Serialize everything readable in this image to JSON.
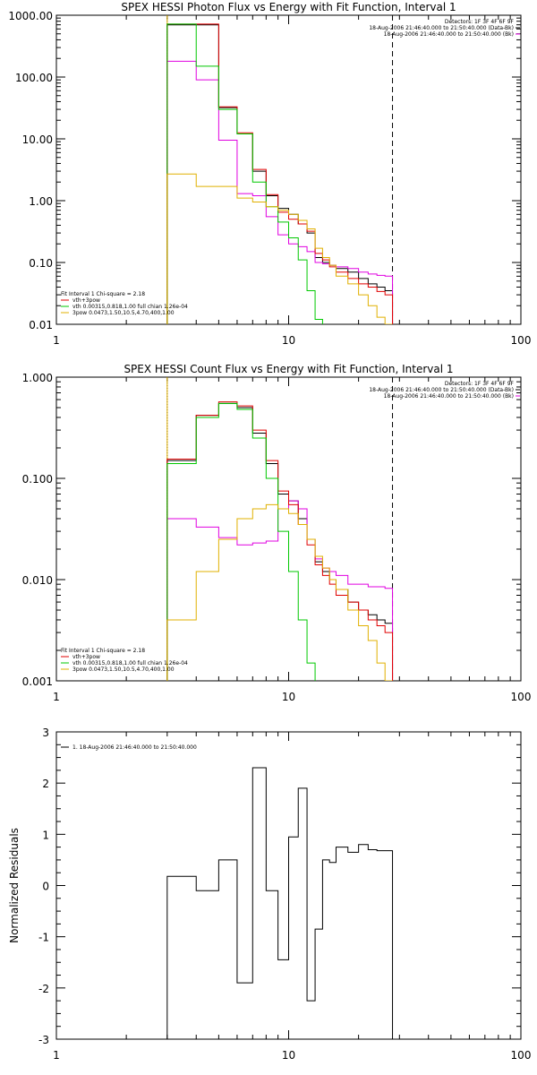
{
  "chart_data": [
    {
      "id": "photon",
      "type": "line",
      "title": "SPEX HESSI Photon Flux vs Energy with Fit Function, Interval 1",
      "ylabel": "",
      "xscale": "log",
      "yscale": "log",
      "xlim": [
        1,
        100
      ],
      "ylim": [
        0.01,
        1000
      ],
      "x_ticks": [
        "1",
        "10",
        "100"
      ],
      "y_ticks": [
        "0.01",
        "0.10",
        "1.00",
        "10.00",
        "100.00",
        "1000.00"
      ],
      "info_lines": [
        "Detectors: 1F 3F 4F 6F 9F",
        "18-Aug-2006 21:46:40.000 to 21:50:40.000 (Data-Bk)",
        "18-Aug-2006 21:46:40.000 to 21:50:40.000 (Bk)"
      ],
      "legend": [
        "Fit Interval 1   Chi-square = 2.18",
        "vth+3pow",
        "vth 0.00315,0.818,1.00   full chian 1.26e-04",
        "3pow 0.0473,1.50,10.5,4.70,400,1.00"
      ],
      "vlines": [
        {
          "x": 3.0,
          "style": "dotted",
          "color": "#000000"
        },
        {
          "x": 3.0,
          "style": "solid",
          "color": "#e0b000"
        },
        {
          "x": 28.0,
          "style": "dashed",
          "color": "#000000"
        }
      ],
      "energy_edges": [
        3,
        4,
        5,
        6,
        7,
        8,
        9,
        10,
        11,
        12,
        13,
        14,
        15,
        16,
        18,
        20,
        22,
        24,
        26,
        28
      ],
      "series": [
        {
          "name": "Data-Bk",
          "color": "#000000",
          "floor": 0.01,
          "end": "down",
          "values": [
            700,
            700,
            32,
            12,
            3,
            1.2,
            0.75,
            0.6,
            0.42,
            0.3,
            0.12,
            0.1,
            0.09,
            0.08,
            0.07,
            0.055,
            0.045,
            0.04,
            0.035
          ]
        },
        {
          "name": "Bk",
          "color": "#e000e0",
          "floor": 0.01,
          "end": "down",
          "values": [
            180,
            90,
            9.5,
            1.3,
            1.2,
            0.55,
            0.28,
            0.2,
            0.18,
            0.15,
            0.1,
            0.095,
            0.09,
            0.085,
            0.08,
            0.07,
            0.065,
            0.062,
            0.06
          ]
        },
        {
          "name": "vth+3pow",
          "color": "#e00000",
          "floor": 0.01,
          "end": "down",
          "values": [
            720,
            720,
            33,
            12.5,
            3.2,
            1.25,
            0.65,
            0.5,
            0.42,
            0.32,
            0.14,
            0.11,
            0.085,
            0.07,
            0.055,
            0.045,
            0.04,
            0.034,
            0.03
          ]
        },
        {
          "name": "vth 0.00315,0.818,1.00",
          "color": "#00c800",
          "floor": 0.01,
          "end": "down",
          "values": [
            720,
            150,
            30,
            12,
            2.0,
            0.8,
            0.45,
            0.25,
            0.11,
            0.035,
            0.012
          ]
        },
        {
          "name": "3pow 0.0473,1.50,10.5,4.70,400,1.00",
          "color": "#e0b000",
          "floor": 0.01,
          "end": "down",
          "values": [
            2.7,
            1.7,
            1.7,
            1.1,
            0.95,
            0.8,
            0.7,
            0.6,
            0.48,
            0.35,
            0.17,
            0.12,
            0.09,
            0.06,
            0.045,
            0.03,
            0.02,
            0.013,
            0.01
          ]
        }
      ]
    },
    {
      "id": "count",
      "type": "line",
      "title": "SPEX HESSI Count Flux vs Energy with Fit Function, Interval 1",
      "ylabel": "",
      "xscale": "log",
      "yscale": "log",
      "xlim": [
        1,
        100
      ],
      "ylim": [
        0.001,
        1.0
      ],
      "x_ticks": [
        "1",
        "10",
        "100"
      ],
      "y_ticks": [
        "0.001",
        "0.010",
        "0.100",
        "1.000"
      ],
      "info_lines": [
        "Detectors: 1F 3F 4F 6F 9F",
        "18-Aug-2006 21:46:40.000 to 21:50:40.000 (Data-Bk)",
        "18-Aug-2006 21:46:40.000 to 21:50:40.000 (Bk)"
      ],
      "legend": [
        "Fit Interval 1   Chi-square = 2.18",
        "vth+3pow",
        "vth 0.00315,0.818,1.00   full chian 1.26e-04",
        "3pow 0.0473,1.50,10.5,4.70,400,1.00"
      ],
      "vlines": [
        {
          "x": 3.0,
          "style": "dotted",
          "color": "#000000"
        },
        {
          "x": 3.0,
          "style": "solid",
          "color": "#e0b000"
        },
        {
          "x": 28.0,
          "style": "dashed",
          "color": "#000000"
        }
      ],
      "energy_edges": [
        3,
        4,
        5,
        6,
        7,
        8,
        9,
        10,
        11,
        12,
        13,
        14,
        15,
        16,
        18,
        20,
        22,
        24,
        26,
        28
      ],
      "series": [
        {
          "name": "Data-Bk",
          "color": "#000000",
          "floor": 0.001,
          "end": "down",
          "values": [
            0.15,
            0.42,
            0.55,
            0.5,
            0.28,
            0.14,
            0.07,
            0.06,
            0.04,
            0.025,
            0.015,
            0.012,
            0.01,
            0.008,
            0.006,
            0.005,
            0.0045,
            0.004,
            0.0037
          ]
        },
        {
          "name": "Bk",
          "color": "#e000e0",
          "floor": 0.001,
          "end": "down",
          "values": [
            0.04,
            0.033,
            0.026,
            0.022,
            0.023,
            0.024,
            0.05,
            0.06,
            0.05,
            0.025,
            0.016,
            0.013,
            0.012,
            0.011,
            0.009,
            0.009,
            0.0085,
            0.0085,
            0.0082
          ]
        },
        {
          "name": "vth+3pow",
          "color": "#e00000",
          "floor": 0.001,
          "end": "down",
          "values": [
            0.155,
            0.42,
            0.57,
            0.52,
            0.3,
            0.15,
            0.075,
            0.055,
            0.035,
            0.022,
            0.014,
            0.011,
            0.009,
            0.007,
            0.006,
            0.005,
            0.004,
            0.0035,
            0.003
          ]
        },
        {
          "name": "vth 0.00315,0.818,1.00",
          "color": "#00c800",
          "floor": 0.001,
          "end": "down",
          "values": [
            0.14,
            0.4,
            0.55,
            0.48,
            0.25,
            0.1,
            0.03,
            0.012,
            0.004,
            0.0015
          ]
        },
        {
          "name": "3pow 0.0473,1.50,10.5,4.70,400,1.00",
          "color": "#e0b000",
          "floor": 0.001,
          "end": "down",
          "values": [
            0.004,
            0.012,
            0.025,
            0.04,
            0.05,
            0.055,
            0.05,
            0.045,
            0.035,
            0.025,
            0.017,
            0.013,
            0.01,
            0.008,
            0.005,
            0.0035,
            0.0025,
            0.0015,
            0.001
          ]
        }
      ]
    },
    {
      "id": "residuals",
      "type": "line",
      "title": "",
      "ylabel": "Normalized Residuals",
      "xscale": "log",
      "yscale": "linear",
      "xlim": [
        1,
        100
      ],
      "ylim": [
        -3,
        3
      ],
      "x_ticks": [
        "1",
        "10",
        "100"
      ],
      "y_ticks": [
        "-3",
        "-2",
        "-1",
        "0",
        "1",
        "2",
        "3"
      ],
      "info_lines": [],
      "legend": [
        "1. 18-Aug-2006 21:46:40.000 to 21:50:40.000"
      ],
      "vlines": [],
      "energy_edges": [
        3,
        4,
        5,
        6,
        7,
        8,
        9,
        10,
        11,
        12,
        13,
        14,
        15,
        16,
        18,
        20,
        22,
        24,
        26,
        28
      ],
      "series": [
        {
          "name": "1. 18-Aug-2006 21:46:40.000 to 21:50:40.000",
          "color": "#000000",
          "floor": -3,
          "end": "down",
          "values": [
            0.18,
            -0.1,
            0.5,
            -1.9,
            2.3,
            -0.1,
            -1.45,
            0.95,
            1.9,
            -2.25,
            -0.85,
            0.5,
            0.45,
            0.75,
            0.65,
            0.8,
            0.7,
            0.68,
            0.68
          ]
        }
      ]
    }
  ]
}
